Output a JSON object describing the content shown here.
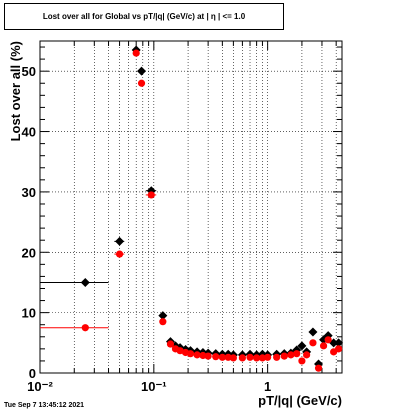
{
  "chart_data": {
    "type": "scatter",
    "title": "Lost over all for Global vs pT/|q| (GeV/c) at |  η | <= 1.0",
    "xlabel": "pT/|q| (GeV/c)",
    "ylabel": "Lost over all (%)",
    "xscale": "log",
    "xlim": [
      0.01,
      4.5
    ],
    "ylim": [
      0,
      55
    ],
    "x_tick_labels": [
      "10⁻²",
      "10⁻¹",
      "1"
    ],
    "x_tick_values": [
      0.01,
      0.1,
      1
    ],
    "y_tick_values": [
      0,
      10,
      20,
      30,
      40,
      50
    ],
    "grid": true,
    "legend": "none",
    "series_colors": [
      "#000000",
      "#ff0000"
    ],
    "series": [
      {
        "marker": "diamond",
        "color": "#000000",
        "points": [
          {
            "x": 0.025,
            "y": 15.0,
            "xlo": 0.01,
            "xhi": 0.04
          },
          {
            "x": 0.05,
            "y": 21.8,
            "xlo": 0.045,
            "xhi": 0.055
          },
          {
            "x": 0.07,
            "y": 53.5
          },
          {
            "x": 0.078,
            "y": 50.0
          },
          {
            "x": 0.095,
            "y": 30.2,
            "xlo": 0.085,
            "xhi": 0.105
          },
          {
            "x": 0.12,
            "y": 9.5
          },
          {
            "x": 0.14,
            "y": 5.2
          },
          {
            "x": 0.155,
            "y": 4.5
          },
          {
            "x": 0.17,
            "y": 4.2
          },
          {
            "x": 0.19,
            "y": 3.9
          },
          {
            "x": 0.21,
            "y": 3.7
          },
          {
            "x": 0.24,
            "y": 3.5
          },
          {
            "x": 0.27,
            "y": 3.4
          },
          {
            "x": 0.3,
            "y": 3.3
          },
          {
            "x": 0.35,
            "y": 3.2
          },
          {
            "x": 0.4,
            "y": 3.1
          },
          {
            "x": 0.45,
            "y": 3.1
          },
          {
            "x": 0.5,
            "y": 3.0
          },
          {
            "x": 0.6,
            "y": 3.0
          },
          {
            "x": 0.7,
            "y": 3.1
          },
          {
            "x": 0.8,
            "y": 3.0
          },
          {
            "x": 0.9,
            "y": 3.1
          },
          {
            "x": 1.0,
            "y": 3.0
          },
          {
            "x": 1.2,
            "y": 3.1
          },
          {
            "x": 1.4,
            "y": 3.2
          },
          {
            "x": 1.6,
            "y": 3.3
          },
          {
            "x": 1.8,
            "y": 3.8
          },
          {
            "x": 2.0,
            "y": 4.5
          },
          {
            "x": 2.2,
            "y": 3.5
          },
          {
            "x": 2.5,
            "y": 6.8
          },
          {
            "x": 2.8,
            "y": 1.5
          },
          {
            "x": 3.1,
            "y": 5.5
          },
          {
            "x": 3.4,
            "y": 6.2
          },
          {
            "x": 3.8,
            "y": 5.0
          },
          {
            "x": 4.2,
            "y": 5.0
          }
        ]
      },
      {
        "marker": "circle",
        "color": "#ff0000",
        "points": [
          {
            "x": 0.025,
            "y": 7.5,
            "xlo": 0.01,
            "xhi": 0.04
          },
          {
            "x": 0.05,
            "y": 19.7,
            "xlo": 0.045,
            "xhi": 0.055
          },
          {
            "x": 0.07,
            "y": 53.0
          },
          {
            "x": 0.078,
            "y": 48.0
          },
          {
            "x": 0.095,
            "y": 29.5,
            "xlo": 0.085,
            "xhi": 0.105
          },
          {
            "x": 0.12,
            "y": 8.5
          },
          {
            "x": 0.14,
            "y": 4.8
          },
          {
            "x": 0.155,
            "y": 4.0
          },
          {
            "x": 0.17,
            "y": 3.7
          },
          {
            "x": 0.19,
            "y": 3.4
          },
          {
            "x": 0.21,
            "y": 3.2
          },
          {
            "x": 0.24,
            "y": 3.0
          },
          {
            "x": 0.27,
            "y": 2.9
          },
          {
            "x": 0.3,
            "y": 2.8
          },
          {
            "x": 0.35,
            "y": 2.7
          },
          {
            "x": 0.4,
            "y": 2.6
          },
          {
            "x": 0.45,
            "y": 2.6
          },
          {
            "x": 0.5,
            "y": 2.5
          },
          {
            "x": 0.6,
            "y": 2.5
          },
          {
            "x": 0.7,
            "y": 2.6
          },
          {
            "x": 0.8,
            "y": 2.5
          },
          {
            "x": 0.9,
            "y": 2.5
          },
          {
            "x": 1.0,
            "y": 2.6
          },
          {
            "x": 1.2,
            "y": 2.6
          },
          {
            "x": 1.4,
            "y": 2.8
          },
          {
            "x": 1.6,
            "y": 3.0
          },
          {
            "x": 1.8,
            "y": 3.2
          },
          {
            "x": 2.0,
            "y": 2.0
          },
          {
            "x": 2.2,
            "y": 3.0
          },
          {
            "x": 2.5,
            "y": 5.0
          },
          {
            "x": 2.8,
            "y": 0.8
          },
          {
            "x": 3.1,
            "y": 4.5
          },
          {
            "x": 3.4,
            "y": 5.5
          },
          {
            "x": 3.8,
            "y": 3.5
          },
          {
            "x": 4.2,
            "y": 4.0
          }
        ]
      }
    ]
  },
  "footer": {
    "timestamp": "Tue Sep  7 13:45:12 2021"
  }
}
